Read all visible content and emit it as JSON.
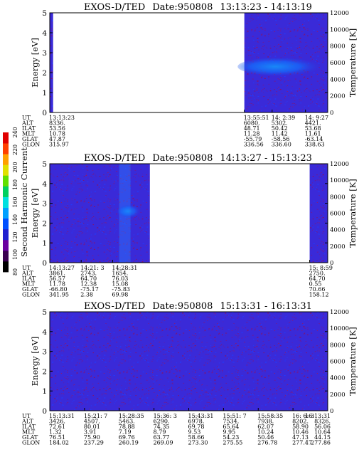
{
  "chart_data": [
    {
      "type": "heatmap",
      "title_instrument": "EXOS-D/TED",
      "title_date": "Date:950808",
      "title_range": "13:13:23 - 14:13:19",
      "ylabel": "Energy [eV]",
      "y2label": "Temperature [K]",
      "ylim": [
        0,
        5
      ],
      "yticks": [
        0,
        1,
        2,
        3,
        4,
        5
      ],
      "y2lim": [
        0,
        12000
      ],
      "y2ticks": [
        0,
        2000,
        4000,
        6000,
        8000,
        10000,
        12000
      ],
      "data_segments": [
        {
          "start": 0.0,
          "end": 0.012
        },
        {
          "start": 0.7,
          "end": 1.0,
          "band": {
            "center": 2.3,
            "halfwidth": 0.45,
            "intensity": 0.8
          }
        }
      ],
      "ephemeris": {
        "labels": [
          "UT",
          "ALT",
          "ILAT",
          "MLT",
          "GLAT",
          "GLON"
        ],
        "columns": [
          {
            "pos": 0.0,
            "values": [
              "13:13:23",
              "8336.",
              "53.56",
              "10.78",
              "47.87",
              "315.97"
            ]
          },
          {
            "pos": 0.7,
            "values": [
              "13:55:51",
              "6080.",
              "48.71",
              "11.28",
              "-55.79",
              "336.56"
            ]
          },
          {
            "pos": 0.8,
            "values": [
              "14: 2:39",
              "5302.",
              "50.42",
              "11.42",
              "-58.56",
              "336.60"
            ]
          },
          {
            "pos": 0.92,
            "values": [
              "14: 9:27",
              "4421.",
              "53.68",
              "11.61",
              "-63.14",
              "338.63"
            ]
          }
        ]
      }
    },
    {
      "type": "heatmap",
      "title_instrument": "EXOS-D/TED",
      "title_date": "Date:950808",
      "title_range": "14:13:27 - 15:13:23",
      "ylabel": "Energy [eV]",
      "y2label": "Temperature [K]",
      "ylim": [
        0,
        5
      ],
      "yticks": [
        0,
        1,
        2,
        3,
        4,
        5
      ],
      "y2lim": [
        0,
        12000
      ],
      "y2ticks": [
        0,
        2000,
        4000,
        6000,
        8000,
        10000,
        12000
      ],
      "data_segments": [
        {
          "start": 0.0,
          "end": 0.36,
          "streak": {
            "pos": 0.27,
            "center": 2.6,
            "intensity": 0.7
          }
        },
        {
          "start": 0.935,
          "end": 1.0
        }
      ],
      "ephemeris": {
        "labels": [
          "UT",
          "ALT",
          "ILAT",
          "MLT",
          "GLAT",
          "GLON"
        ],
        "columns": [
          {
            "pos": 0.0,
            "values": [
              "14:13:27",
              "3861.",
              "56.57",
              "11.78",
              "-66.80",
              "341.95"
            ]
          },
          {
            "pos": 0.113,
            "values": [
              "14:21: 3",
              "2743.",
              "64.70",
              "12.38",
              "-75.17",
              "2.38"
            ]
          },
          {
            "pos": 0.226,
            "values": [
              "14:28:31",
              "1654.",
              "76.03",
              "15.08",
              "-75.83",
              "69.98"
            ]
          },
          {
            "pos": 0.935,
            "values": [
              "15: 8:59",
              "2750.",
              "64.70",
              "0.55",
              "70.66",
              "158.12"
            ]
          }
        ]
      }
    },
    {
      "type": "heatmap",
      "title_instrument": "EXOS-D/TED",
      "title_date": "Date:950808",
      "title_range": "15:13:31 - 16:13:31",
      "ylabel": "Energy [eV]",
      "y2label": "Temperature [K]",
      "ylim": [
        0,
        5
      ],
      "yticks": [
        0,
        1,
        2,
        3,
        4,
        5
      ],
      "y2lim": [
        0,
        12000
      ],
      "y2ticks": [
        0,
        2000,
        4000,
        6000,
        8000,
        10000,
        12000
      ],
      "data_segments": [
        {
          "start": 0.0,
          "end": 1.0
        }
      ],
      "ephemeris": {
        "labels": [
          "UT",
          "ALT",
          "ILAT",
          "MLT",
          "GLAT",
          "GLON"
        ],
        "columns": [
          {
            "pos": 0.0,
            "values": [
              "15:13:31",
              "3426.",
              "72.61",
              "1.32",
              "76.51",
              "184.02"
            ]
          },
          {
            "pos": 0.125,
            "values": [
              "15:21: 7",
              "4507.",
              "80.01",
              "3.91",
              "75.90",
              "237.29"
            ]
          },
          {
            "pos": 0.25,
            "values": [
              "15:28:35",
              "5463.",
              "78.88",
              "7.19",
              "69.76",
              "260.19"
            ]
          },
          {
            "pos": 0.375,
            "values": [
              "15:36: 3",
              "6290.",
              "74.35",
              "8.79",
              "63.77",
              "269.09"
            ]
          },
          {
            "pos": 0.5,
            "values": [
              "15:43:31",
              "6978.",
              "69.78",
              "9.53",
              "58.66",
              "273.30"
            ]
          },
          {
            "pos": 0.625,
            "values": [
              "15:51: 7",
              "7534.",
              "65.64",
              "9.95",
              "54.23",
              "275.55"
            ]
          },
          {
            "pos": 0.75,
            "values": [
              "15:58:35",
              "7938.",
              "62.07",
              "10.24",
              "50.46",
              "276.78"
            ]
          },
          {
            "pos": 0.875,
            "values": [
              "16: 6: 3",
              "8202.",
              "58.90",
              "10.46",
              "47.13",
              "277.47"
            ]
          },
          {
            "pos": 1.0,
            "values": [
              "16:13:31",
              "8326.",
              "56.06",
              "10.64",
              "44.15",
              "277.86"
            ]
          }
        ]
      }
    }
  ],
  "colorbar": {
    "label": "Second Harmonic Current",
    "ticks": [
      80,
      100,
      120,
      140,
      160,
      180,
      200,
      220,
      240
    ],
    "colors": [
      "#000000",
      "#3a0050",
      "#6a00a0",
      "#2020d0",
      "#0050ff",
      "#00a0ff",
      "#00e0e0",
      "#00d060",
      "#60e000",
      "#e0e000",
      "#ffa000",
      "#ff4000",
      "#e00000"
    ]
  }
}
